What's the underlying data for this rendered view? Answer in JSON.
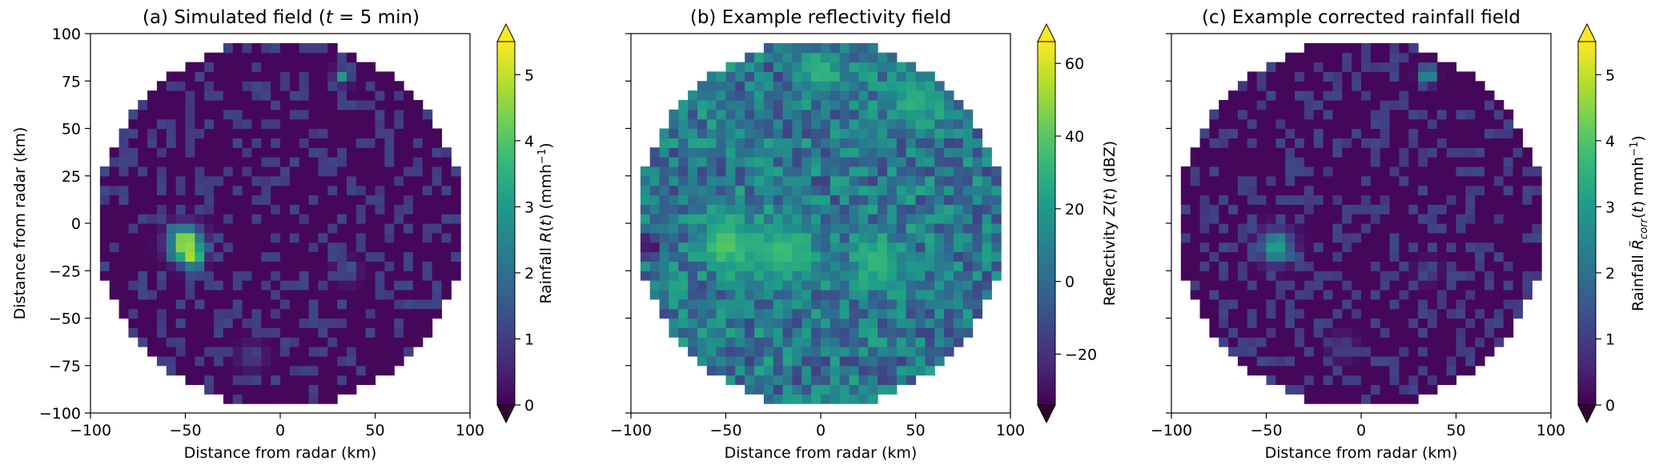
{
  "colors": {
    "viridis": [
      "#440154",
      "#482878",
      "#3e4989",
      "#31688e",
      "#26828e",
      "#1f9e89",
      "#35b779",
      "#6ece58",
      "#b5de2b",
      "#fde725"
    ],
    "background": "#ffffff",
    "axis": "#000000"
  },
  "chart_data": [
    {
      "type": "heatmap",
      "title_prefix": "(a) Simulated field (",
      "title_math": "t",
      "title_suffix": " = 5 min)",
      "xlabel": "Distance from radar (km)",
      "ylabel": "Distance from radar (km)",
      "xlim": [
        -100,
        100
      ],
      "ylim": [
        -100,
        100
      ],
      "xticks": [
        -100,
        -50,
        0,
        50,
        100
      ],
      "xtick_labels": [
        "−100",
        "−50",
        "0",
        "50",
        "100"
      ],
      "yticks": [
        100,
        75,
        50,
        25,
        0,
        -25,
        -50,
        -75,
        -100
      ],
      "ytick_labels": [
        "100",
        "75",
        "50",
        "25",
        "0",
        "−25",
        "−50",
        "−75",
        "−100"
      ],
      "domain": "circle",
      "radius_km": 97,
      "colorbar": {
        "label": "Rainfall R(t) (mmh⁻¹)",
        "vmin": 0,
        "vmax": 5.5,
        "ticks": [
          0,
          1,
          2,
          3,
          4,
          5
        ],
        "tick_labels": [
          "0",
          "1",
          "2",
          "3",
          "4",
          "5"
        ],
        "extend": "both",
        "cmap": "viridis"
      },
      "features": [
        {
          "x": -50,
          "y": -10,
          "value": 5.2,
          "spread_km": 6
        },
        {
          "x": -47,
          "y": -17,
          "value": 4.8,
          "spread_km": 4
        },
        {
          "x": 33,
          "y": 78,
          "value": 3.0,
          "spread_km": 3
        },
        {
          "x": 35,
          "y": -25,
          "value": 1.5,
          "spread_km": 4
        },
        {
          "x": -15,
          "y": -70,
          "value": 1.0,
          "spread_km": 5
        }
      ],
      "background_value": 0.1
    },
    {
      "type": "heatmap",
      "title": "(b) Example reflectivity field",
      "xlabel": "Distance from radar (km)",
      "xlim": [
        -100,
        100
      ],
      "ylim": [
        -100,
        100
      ],
      "xticks": [
        -100,
        -50,
        0,
        50,
        100
      ],
      "xtick_labels": [
        "−100",
        "−50",
        "0",
        "50",
        "100"
      ],
      "yticks": [
        100,
        75,
        50,
        25,
        0,
        -25,
        -50,
        -75,
        -100
      ],
      "domain": "circle",
      "radius_km": 97,
      "colorbar": {
        "label": "Reflectivity Z(t) (dBZ)",
        "vmin": -34,
        "vmax": 66,
        "ticks": [
          -20,
          0,
          20,
          40,
          60
        ],
        "tick_labels": [
          "−20",
          "0",
          "20",
          "40",
          "60"
        ],
        "extend": "both",
        "cmap": "viridis"
      },
      "features": [
        {
          "x": -50,
          "y": -10,
          "value": 40,
          "spread_km": 10
        },
        {
          "x": -20,
          "y": -15,
          "value": 35,
          "spread_km": 12
        },
        {
          "x": 30,
          "y": -20,
          "value": 33,
          "spread_km": 10
        },
        {
          "x": 0,
          "y": 80,
          "value": 32,
          "spread_km": 8
        },
        {
          "x": 50,
          "y": 65,
          "value": 30,
          "spread_km": 10
        },
        {
          "x": -90,
          "y": -12,
          "value": -30,
          "spread_km": 5
        }
      ],
      "background_value": 5
    },
    {
      "type": "heatmap",
      "title": "(c) Example corrected rainfall field",
      "xlabel": "Distance from radar (km)",
      "xlim": [
        -100,
        100
      ],
      "ylim": [
        -100,
        100
      ],
      "xticks": [
        -100,
        -50,
        0,
        50,
        100
      ],
      "xtick_labels": [
        "−100",
        "−50",
        "0",
        "50",
        "100"
      ],
      "yticks": [
        100,
        75,
        50,
        25,
        0,
        -25,
        -50,
        -75,
        -100
      ],
      "domain": "circle",
      "radius_km": 97,
      "colorbar": {
        "label": "Rainfall R̃corr(t) mmh⁻¹)",
        "vmin": 0,
        "vmax": 5.5,
        "ticks": [
          0,
          1,
          2,
          3,
          4,
          5
        ],
        "tick_labels": [
          "0",
          "1",
          "2",
          "3",
          "4",
          "5"
        ],
        "extend": "both",
        "cmap": "viridis"
      },
      "features": [
        {
          "x": -45,
          "y": -12,
          "value": 3.2,
          "spread_km": 6
        },
        {
          "x": 35,
          "y": 78,
          "value": 3.0,
          "spread_km": 3
        },
        {
          "x": 35,
          "y": -25,
          "value": 1.2,
          "spread_km": 4
        },
        {
          "x": -10,
          "y": -65,
          "value": 0.9,
          "spread_km": 5
        }
      ],
      "background_value": 0.1
    }
  ]
}
